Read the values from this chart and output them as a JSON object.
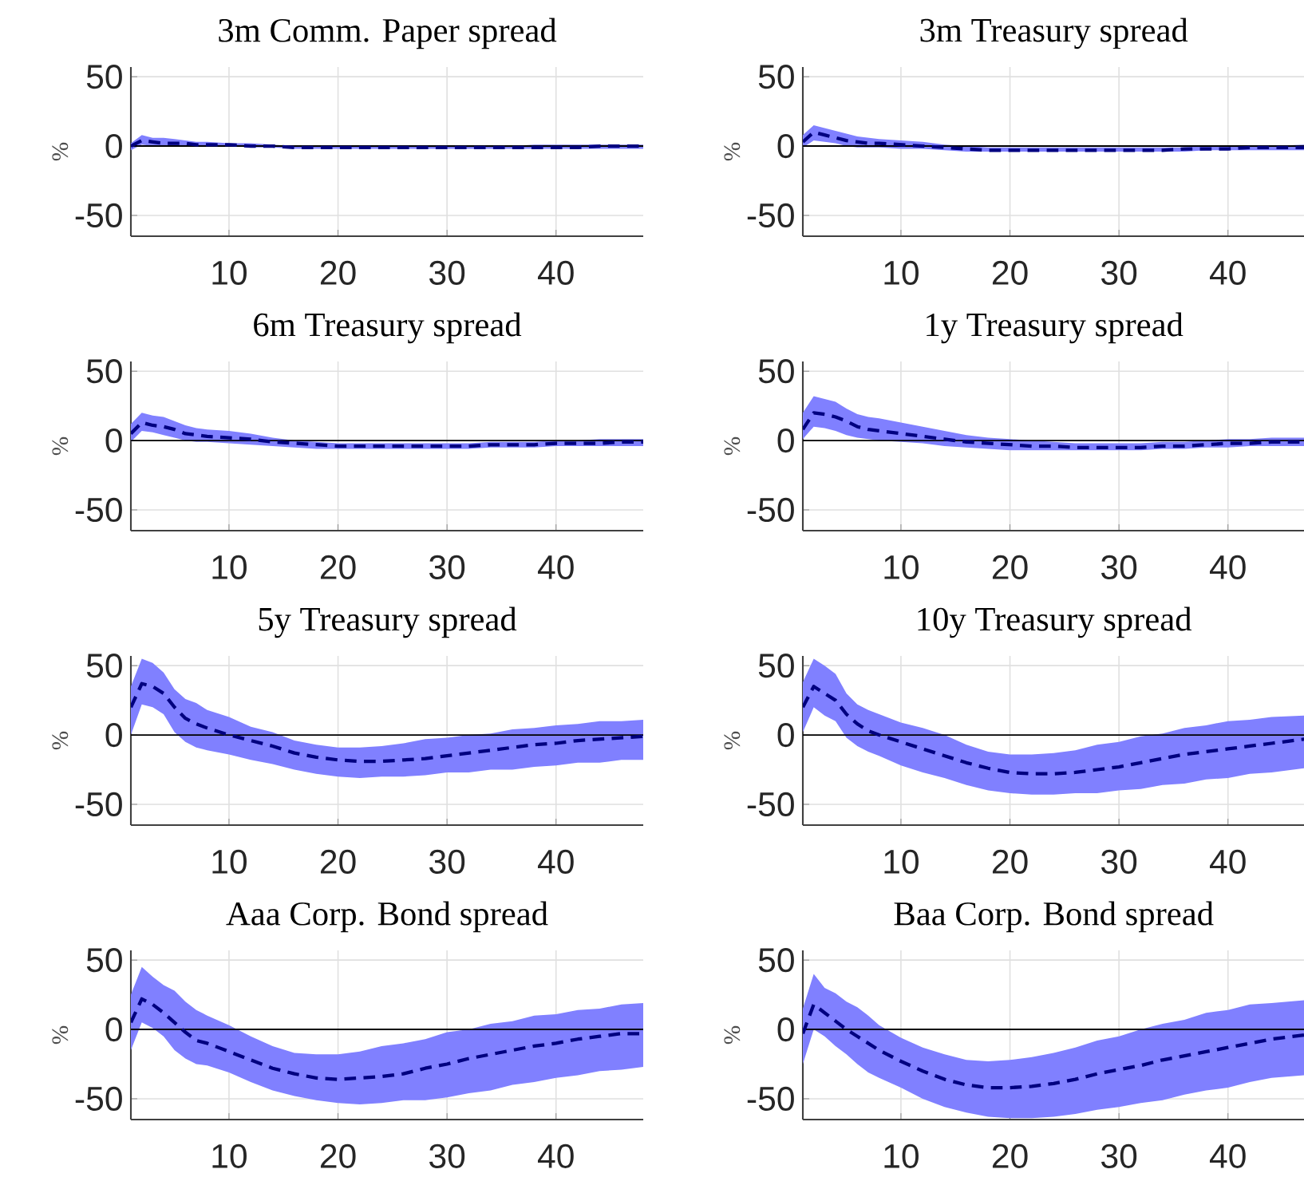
{
  "chart_data": [
    {
      "type": "line",
      "title": "3m Comm. Paper spread",
      "ylabel": "%",
      "x": [
        1,
        2,
        3,
        4,
        5,
        6,
        7,
        8,
        10,
        12,
        14,
        16,
        18,
        20,
        22,
        24,
        26,
        28,
        30,
        32,
        34,
        36,
        38,
        40,
        42,
        44,
        46,
        48
      ],
      "xlim": [
        1,
        48
      ],
      "ylim": [
        -65,
        57
      ],
      "xticks": [
        10,
        20,
        30,
        40
      ],
      "yticks": [
        -50,
        0,
        50
      ],
      "grid": true,
      "line_style": "dashed",
      "marker": "none",
      "ref_lines": [
        {
          "axis": "y",
          "value": 0,
          "color": "#000000"
        }
      ],
      "series": [
        {
          "color": "#000080",
          "values": [
            0,
            4,
            3,
            2,
            2,
            2,
            1,
            1,
            1,
            0,
            0,
            -1,
            -1,
            -1,
            -1,
            -1,
            -1,
            -1,
            -1,
            -1,
            -1,
            -1,
            -1,
            -1,
            -1,
            0,
            0,
            0
          ],
          "lower": [
            -3,
            1,
            0,
            0,
            0,
            0,
            0,
            0,
            0,
            -1,
            -1,
            -2,
            -2,
            -2,
            -2,
            -2,
            -2,
            -2,
            -2,
            -2,
            -2,
            -2,
            -2,
            -2,
            -2,
            -2,
            -2,
            -2
          ],
          "upper": [
            2,
            8,
            6,
            6,
            5,
            4,
            3,
            3,
            2,
            2,
            1,
            0,
            0,
            0,
            0,
            0,
            0,
            0,
            0,
            0,
            0,
            0,
            1,
            1,
            1,
            1,
            1,
            1
          ]
        }
      ]
    },
    {
      "type": "line",
      "title": "3m Treasury spread",
      "ylabel": "%",
      "x": [
        1,
        2,
        3,
        4,
        5,
        6,
        7,
        8,
        10,
        12,
        14,
        16,
        18,
        20,
        22,
        24,
        26,
        28,
        30,
        32,
        34,
        36,
        38,
        40,
        42,
        44,
        47
      ],
      "xlim": [
        1,
        47
      ],
      "ylim": [
        -65,
        57
      ],
      "xticks": [
        10,
        20,
        30,
        40
      ],
      "yticks": [
        -50,
        0,
        50
      ],
      "grid": true,
      "line_style": "dashed",
      "marker": "none",
      "ref_lines": [
        {
          "axis": "y",
          "value": 0,
          "color": "#000000"
        }
      ],
      "series": [
        {
          "color": "#000080",
          "values": [
            3,
            10,
            8,
            6,
            4,
            3,
            2,
            2,
            1,
            0,
            -1,
            -2,
            -3,
            -3,
            -3,
            -3,
            -3,
            -3,
            -3,
            -3,
            -3,
            -2,
            -2,
            -2,
            -1,
            -1,
            -1
          ],
          "lower": [
            -1,
            4,
            3,
            2,
            0,
            -1,
            -1,
            -1,
            -2,
            -2,
            -3,
            -4,
            -4,
            -4,
            -4,
            -4,
            -4,
            -4,
            -4,
            -4,
            -4,
            -4,
            -3,
            -3,
            -3,
            -3,
            -3
          ],
          "upper": [
            8,
            15,
            13,
            11,
            9,
            7,
            6,
            5,
            4,
            3,
            1,
            0,
            -1,
            -1,
            -1,
            -1,
            -1,
            -1,
            -1,
            -1,
            -1,
            -1,
            0,
            0,
            0,
            0,
            1
          ]
        }
      ]
    },
    {
      "type": "line",
      "title": "6m Treasury spread",
      "ylabel": "%",
      "x": [
        1,
        2,
        3,
        4,
        5,
        6,
        7,
        8,
        10,
        12,
        14,
        16,
        18,
        20,
        22,
        24,
        26,
        28,
        30,
        32,
        34,
        36,
        38,
        40,
        42,
        44,
        46,
        48
      ],
      "xlim": [
        1,
        48
      ],
      "ylim": [
        -65,
        57
      ],
      "xticks": [
        10,
        20,
        30,
        40
      ],
      "yticks": [
        -50,
        0,
        50
      ],
      "grid": true,
      "line_style": "dashed",
      "marker": "none",
      "ref_lines": [
        {
          "axis": "y",
          "value": 0,
          "color": "#000000"
        }
      ],
      "series": [
        {
          "color": "#000080",
          "values": [
            5,
            13,
            11,
            10,
            8,
            5,
            4,
            3,
            2,
            1,
            -1,
            -2,
            -3,
            -4,
            -4,
            -4,
            -4,
            -4,
            -4,
            -4,
            -3,
            -3,
            -3,
            -2,
            -2,
            -2,
            -1,
            -1
          ],
          "lower": [
            -1,
            7,
            6,
            4,
            2,
            0,
            -1,
            -1,
            -2,
            -3,
            -4,
            -5,
            -6,
            -6,
            -6,
            -6,
            -6,
            -6,
            -6,
            -6,
            -5,
            -5,
            -5,
            -4,
            -4,
            -4,
            -4,
            -4
          ],
          "upper": [
            12,
            20,
            18,
            17,
            14,
            11,
            9,
            8,
            7,
            5,
            2,
            0,
            -1,
            -2,
            -2,
            -2,
            -2,
            -2,
            -2,
            -2,
            -1,
            -1,
            -1,
            0,
            0,
            1,
            1,
            1
          ]
        }
      ]
    },
    {
      "type": "line",
      "title": "1y Treasury spread",
      "ylabel": "%",
      "x": [
        1,
        2,
        3,
        4,
        5,
        6,
        7,
        8,
        10,
        12,
        14,
        16,
        18,
        20,
        22,
        24,
        26,
        28,
        30,
        32,
        34,
        36,
        38,
        40,
        42,
        44,
        47
      ],
      "xlim": [
        1,
        47
      ],
      "ylim": [
        -65,
        57
      ],
      "xticks": [
        10,
        20,
        30,
        40
      ],
      "yticks": [
        -50,
        0,
        50
      ],
      "grid": true,
      "line_style": "dashed",
      "marker": "none",
      "ref_lines": [
        {
          "axis": "y",
          "value": 0,
          "color": "#000000"
        }
      ],
      "series": [
        {
          "color": "#000080",
          "values": [
            8,
            20,
            19,
            17,
            14,
            10,
            8,
            7,
            5,
            3,
            1,
            -1,
            -2,
            -3,
            -4,
            -4,
            -5,
            -5,
            -5,
            -5,
            -4,
            -4,
            -3,
            -2,
            -2,
            -1,
            -1
          ],
          "lower": [
            1,
            10,
            9,
            7,
            4,
            2,
            1,
            0,
            -1,
            -2,
            -4,
            -5,
            -6,
            -7,
            -7,
            -7,
            -7,
            -7,
            -7,
            -7,
            -6,
            -6,
            -5,
            -5,
            -4,
            -4,
            -4
          ],
          "upper": [
            20,
            32,
            30,
            28,
            23,
            19,
            17,
            16,
            13,
            10,
            7,
            4,
            2,
            1,
            0,
            -1,
            -2,
            -2,
            -2,
            -2,
            -1,
            -1,
            0,
            1,
            1,
            2,
            2
          ]
        }
      ]
    },
    {
      "type": "line",
      "title": "5y Treasury spread",
      "ylabel": "%",
      "x": [
        1,
        2,
        3,
        4,
        5,
        6,
        7,
        8,
        10,
        12,
        14,
        16,
        18,
        20,
        22,
        24,
        26,
        28,
        30,
        32,
        34,
        36,
        38,
        40,
        42,
        44,
        46,
        48
      ],
      "xlim": [
        1,
        48
      ],
      "ylim": [
        -65,
        57
      ],
      "xticks": [
        10,
        20,
        30,
        40
      ],
      "yticks": [
        -50,
        0,
        50
      ],
      "grid": true,
      "line_style": "dashed",
      "marker": "none",
      "ref_lines": [
        {
          "axis": "y",
          "value": 0,
          "color": "#000000"
        }
      ],
      "series": [
        {
          "color": "#000080",
          "values": [
            20,
            37,
            35,
            30,
            20,
            12,
            8,
            5,
            0,
            -4,
            -8,
            -13,
            -16,
            -18,
            -19,
            -19,
            -18,
            -17,
            -15,
            -13,
            -11,
            -9,
            -7,
            -6,
            -4,
            -3,
            -2,
            -1
          ],
          "lower": [
            0,
            22,
            20,
            15,
            2,
            -5,
            -9,
            -11,
            -14,
            -18,
            -21,
            -25,
            -28,
            -30,
            -31,
            -30,
            -30,
            -29,
            -27,
            -27,
            -25,
            -25,
            -23,
            -22,
            -20,
            -20,
            -18,
            -18
          ],
          "upper": [
            35,
            55,
            52,
            45,
            33,
            26,
            23,
            18,
            13,
            6,
            2,
            -4,
            -7,
            -9,
            -9,
            -8,
            -6,
            -3,
            -2,
            0,
            1,
            4,
            5,
            7,
            8,
            10,
            10,
            11
          ]
        }
      ]
    },
    {
      "type": "line",
      "title": "10y Treasury spread",
      "ylabel": "%",
      "x": [
        1,
        2,
        3,
        4,
        5,
        6,
        7,
        8,
        10,
        12,
        14,
        16,
        18,
        20,
        22,
        24,
        26,
        28,
        30,
        32,
        34,
        36,
        38,
        40,
        42,
        44,
        47
      ],
      "xlim": [
        1,
        47
      ],
      "ylim": [
        -65,
        57
      ],
      "xticks": [
        10,
        20,
        30,
        40
      ],
      "yticks": [
        -50,
        0,
        50
      ],
      "grid": true,
      "line_style": "dashed",
      "marker": "none",
      "ref_lines": [
        {
          "axis": "y",
          "value": 0,
          "color": "#000000"
        }
      ],
      "series": [
        {
          "color": "#000080",
          "values": [
            20,
            35,
            30,
            25,
            15,
            8,
            3,
            0,
            -5,
            -10,
            -15,
            -20,
            -24,
            -27,
            -28,
            -28,
            -27,
            -25,
            -23,
            -20,
            -17,
            -14,
            -12,
            -10,
            -8,
            -6,
            -3
          ],
          "lower": [
            2,
            20,
            14,
            10,
            -2,
            -8,
            -12,
            -15,
            -22,
            -27,
            -31,
            -36,
            -40,
            -42,
            -43,
            -43,
            -42,
            -42,
            -40,
            -39,
            -36,
            -35,
            -32,
            -31,
            -28,
            -27,
            -24
          ],
          "upper": [
            38,
            55,
            50,
            44,
            30,
            22,
            18,
            15,
            9,
            5,
            0,
            -7,
            -12,
            -14,
            -14,
            -13,
            -11,
            -7,
            -5,
            -1,
            1,
            5,
            7,
            10,
            11,
            13,
            14
          ]
        }
      ]
    },
    {
      "type": "line",
      "title": "Aaa Corp. Bond spread",
      "ylabel": "%",
      "x": [
        1,
        2,
        3,
        4,
        5,
        6,
        7,
        8,
        10,
        12,
        14,
        16,
        18,
        20,
        22,
        24,
        26,
        28,
        30,
        32,
        34,
        36,
        38,
        40,
        42,
        44,
        46,
        48
      ],
      "xlim": [
        1,
        48
      ],
      "ylim": [
        -65,
        57
      ],
      "xticks": [
        10,
        20,
        30,
        40
      ],
      "yticks": [
        -50,
        0,
        50
      ],
      "grid": true,
      "line_style": "dashed",
      "marker": "none",
      "ref_lines": [
        {
          "axis": "y",
          "value": 0,
          "color": "#000000"
        }
      ],
      "series": [
        {
          "color": "#000080",
          "values": [
            5,
            22,
            18,
            12,
            5,
            -2,
            -8,
            -10,
            -16,
            -22,
            -28,
            -32,
            -35,
            -36,
            -35,
            -34,
            -32,
            -28,
            -25,
            -21,
            -18,
            -15,
            -12,
            -10,
            -7,
            -5,
            -3,
            -3
          ],
          "lower": [
            -15,
            5,
            1,
            -5,
            -15,
            -21,
            -25,
            -26,
            -31,
            -38,
            -44,
            -48,
            -51,
            -53,
            -54,
            -53,
            -51,
            -51,
            -49,
            -46,
            -44,
            -40,
            -38,
            -35,
            -33,
            -30,
            -29,
            -27
          ],
          "upper": [
            25,
            45,
            38,
            32,
            28,
            20,
            14,
            10,
            3,
            -5,
            -12,
            -17,
            -18,
            -18,
            -16,
            -12,
            -10,
            -7,
            -2,
            0,
            4,
            6,
            10,
            11,
            14,
            15,
            18,
            19
          ]
        }
      ]
    },
    {
      "type": "line",
      "title": "Baa Corp. Bond spread",
      "ylabel": "%",
      "x": [
        1,
        2,
        3,
        4,
        5,
        6,
        7,
        8,
        10,
        12,
        14,
        16,
        18,
        20,
        22,
        24,
        26,
        28,
        30,
        32,
        34,
        36,
        38,
        40,
        42,
        44,
        47
      ],
      "xlim": [
        1,
        47
      ],
      "ylim": [
        -65,
        57
      ],
      "xticks": [
        10,
        20,
        30,
        40
      ],
      "yticks": [
        -50,
        0,
        50
      ],
      "grid": true,
      "line_style": "dashed",
      "marker": "none",
      "ref_lines": [
        {
          "axis": "y",
          "value": 0,
          "color": "#000000"
        }
      ],
      "series": [
        {
          "color": "#000080",
          "values": [
            -3,
            18,
            12,
            6,
            0,
            -5,
            -10,
            -15,
            -23,
            -30,
            -36,
            -40,
            -42,
            -42,
            -41,
            -39,
            -36,
            -32,
            -29,
            -26,
            -22,
            -19,
            -16,
            -13,
            -10,
            -7,
            -4
          ],
          "lower": [
            -25,
            0,
            -5,
            -12,
            -18,
            -25,
            -31,
            -35,
            -42,
            -50,
            -56,
            -60,
            -63,
            -64,
            -64,
            -63,
            -61,
            -58,
            -56,
            -53,
            -51,
            -47,
            -44,
            -42,
            -38,
            -35,
            -33
          ],
          "upper": [
            15,
            40,
            30,
            26,
            20,
            16,
            10,
            3,
            -6,
            -13,
            -18,
            -22,
            -23,
            -22,
            -20,
            -17,
            -13,
            -8,
            -5,
            0,
            4,
            7,
            12,
            14,
            18,
            19,
            21
          ]
        }
      ]
    }
  ]
}
